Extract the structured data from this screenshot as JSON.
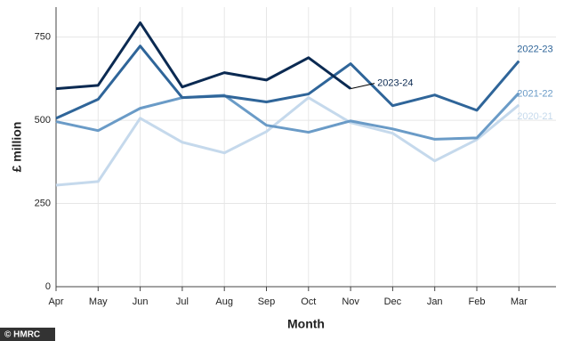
{
  "chart_data": {
    "type": "line",
    "x_label": "Month",
    "y_label": "£ million",
    "categories": [
      "Apr",
      "May",
      "Jun",
      "Jul",
      "Aug",
      "Sep",
      "Oct",
      "Nov",
      "Dec",
      "Jan",
      "Feb",
      "Mar"
    ],
    "series": [
      {
        "name": "2020-21",
        "color": "#c5d9ec",
        "values": [
          305,
          316,
          506,
          434,
          402,
          466,
          568,
          493,
          461,
          378,
          442,
          546
        ]
      },
      {
        "name": "2021-22",
        "color": "#6a9bc7",
        "values": [
          496,
          469,
          536,
          568,
          575,
          485,
          464,
          498,
          474,
          443,
          447,
          582
        ]
      },
      {
        "name": "2022-23",
        "color": "#2f6599",
        "values": [
          506,
          563,
          723,
          568,
          573,
          555,
          579,
          670,
          544,
          576,
          530,
          678
        ]
      },
      {
        "name": "2023-24",
        "color": "#0b2a52",
        "values": [
          595,
          605,
          793,
          600,
          643,
          621,
          688,
          595,
          null,
          null,
          null,
          null
        ]
      }
    ],
    "ylim": [
      0,
      840
    ],
    "yticks": [
      0,
      250,
      500,
      750
    ],
    "grid": true,
    "source": "© HMRC"
  }
}
